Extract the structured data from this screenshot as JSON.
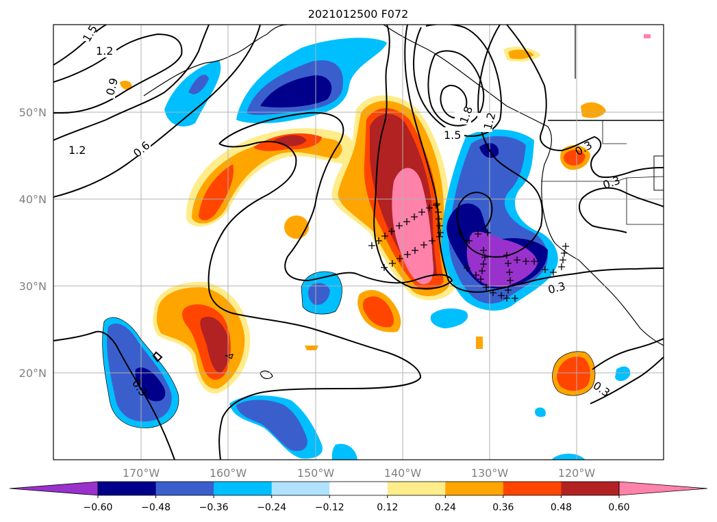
{
  "title": "2021012500 F072",
  "latitude_labels": [
    "50°N",
    "40°N",
    "30°N",
    "20°N"
  ],
  "longitude_labels": [
    "170°W",
    "160°W",
    "150°W",
    "140°W",
    "130°W",
    "120°W"
  ],
  "colorbar": {
    "ticks": [
      "−0.60",
      "−0.48",
      "−0.36",
      "−0.24",
      "−0.12",
      "0.12",
      "0.24",
      "0.36",
      "0.48",
      "0.60"
    ],
    "colors": [
      "#9932cc",
      "#00008b",
      "#3a5fcd",
      "#00bfff",
      "#b0e2ff",
      "#ffffff",
      "#ffec8b",
      "#ffa500",
      "#ff4500",
      "#b22222",
      "#ff82ab"
    ]
  },
  "contour_labels": [
    "1.5",
    "1.2",
    "0.9",
    "1.2",
    "0.6",
    "1.5",
    "1.8",
    "1.2",
    "0.3",
    "0.3",
    "0.3",
    "0.3",
    "0.3"
  ]
}
